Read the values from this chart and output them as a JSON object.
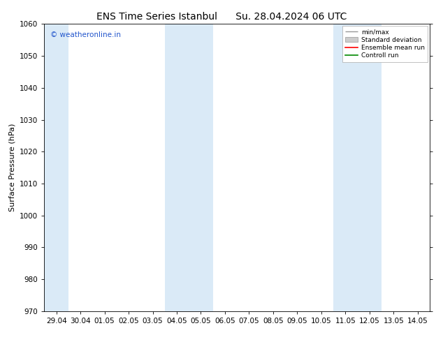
{
  "title_left": "ENS Time Series Istanbul",
  "title_right": "Su. 28.04.2024 06 UTC",
  "ylabel": "Surface Pressure (hPa)",
  "ylim": [
    970,
    1060
  ],
  "yticks": [
    970,
    980,
    990,
    1000,
    1010,
    1020,
    1030,
    1040,
    1050,
    1060
  ],
  "xtick_labels": [
    "29.04",
    "30.04",
    "01.05",
    "02.05",
    "03.05",
    "04.05",
    "05.05",
    "06.05",
    "07.05",
    "08.05",
    "09.05",
    "10.05",
    "11.05",
    "12.05",
    "13.05",
    "14.05"
  ],
  "xtick_positions": [
    0,
    1,
    2,
    3,
    4,
    5,
    6,
    7,
    8,
    9,
    10,
    11,
    12,
    13,
    14,
    15
  ],
  "xlim": [
    -0.5,
    15.5
  ],
  "shaded_bands": [
    {
      "xmin": -0.5,
      "xmax": 0.5
    },
    {
      "xmin": 4.5,
      "xmax": 6.5
    },
    {
      "xmin": 11.5,
      "xmax": 13.5
    }
  ],
  "band_color": "#daeaf7",
  "watermark_text": "© weatheronline.in",
  "watermark_color": "#2255cc",
  "legend_labels": [
    "min/max",
    "Standard deviation",
    "Ensemble mean run",
    "Controll run"
  ],
  "legend_colors_line": [
    "#999999",
    "#cccccc",
    "#ff0000",
    "#008800"
  ],
  "bg_color": "#ffffff",
  "title_fontsize": 10,
  "axis_label_fontsize": 8,
  "tick_fontsize": 7.5
}
